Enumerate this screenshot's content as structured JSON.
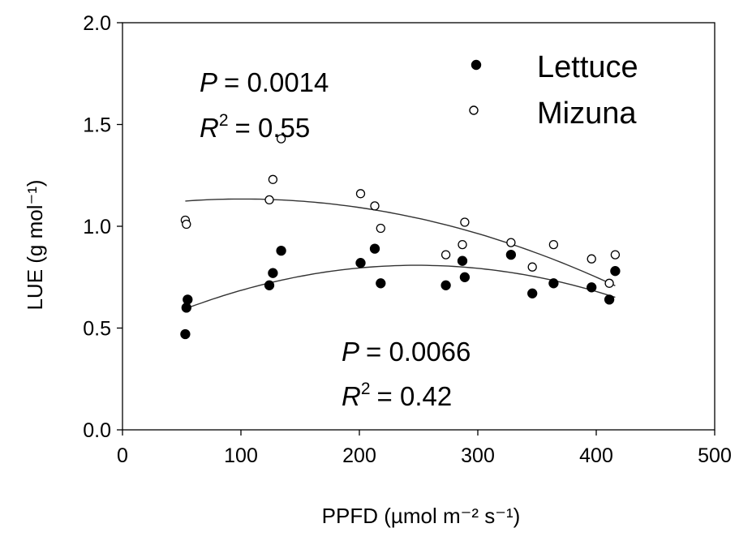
{
  "chart_data": {
    "type": "scatter",
    "xlabel": "PPFD (µmol m⁻² s⁻¹)",
    "ylabel": "LUE (g mol⁻¹)",
    "xlim": [
      0,
      500
    ],
    "ylim": [
      0,
      2.0
    ],
    "xticks": [
      "0",
      "100",
      "200",
      "300",
      "400",
      "500"
    ],
    "yticks": [
      "0.0",
      "0.5",
      "1.0",
      "1.5",
      "2.0"
    ],
    "grid": false,
    "legend_position": "top-right",
    "series": [
      {
        "name": "Lettuce",
        "marker": "filled-circle",
        "color": "#000000",
        "points": [
          [
            53,
            0.47
          ],
          [
            54,
            0.6
          ],
          [
            55,
            0.64
          ],
          [
            124,
            0.71
          ],
          [
            127,
            0.77
          ],
          [
            134,
            0.88
          ],
          [
            201,
            0.82
          ],
          [
            213,
            0.89
          ],
          [
            218,
            0.72
          ],
          [
            273,
            0.71
          ],
          [
            287,
            0.83
          ],
          [
            289,
            0.75
          ],
          [
            328,
            0.86
          ],
          [
            346,
            0.67
          ],
          [
            364,
            0.72
          ],
          [
            396,
            0.7
          ],
          [
            411,
            0.64
          ],
          [
            416,
            0.78
          ]
        ],
        "fit": {
          "type": "quadratic",
          "x_range": [
            53,
            416
          ],
          "coefficients": [
            0.4628,
            0.002782,
            -5.6e-06
          ]
        }
      },
      {
        "name": "Mizuna",
        "marker": "open-circle",
        "color": "#000000",
        "points": [
          [
            53,
            1.03
          ],
          [
            54,
            1.01
          ],
          [
            124,
            1.13
          ],
          [
            127,
            1.23
          ],
          [
            134,
            1.43
          ],
          [
            201,
            1.16
          ],
          [
            213,
            1.1
          ],
          [
            218,
            0.99
          ],
          [
            273,
            0.86
          ],
          [
            287,
            0.91
          ],
          [
            289,
            1.02
          ],
          [
            328,
            0.92
          ],
          [
            346,
            0.8
          ],
          [
            364,
            0.91
          ],
          [
            396,
            0.84
          ],
          [
            411,
            0.72
          ],
          [
            416,
            0.86
          ]
        ],
        "fit": {
          "type": "quadratic",
          "x_range": [
            53,
            416
          ],
          "coefficients": [
            1.09,
            0.00087,
            -4.3e-06
          ]
        }
      }
    ],
    "annotations": [
      {
        "series": "Mizuna",
        "p_label": "P",
        "p_value": "= 0.0014",
        "r_label": "R",
        "r_sup": "2",
        "r_value": "= 0.55"
      },
      {
        "series": "Lettuce",
        "p_label": "P",
        "p_value": "= 0.0066",
        "r_label": "R",
        "r_sup": "2",
        "r_value": "= 0.42"
      }
    ]
  }
}
